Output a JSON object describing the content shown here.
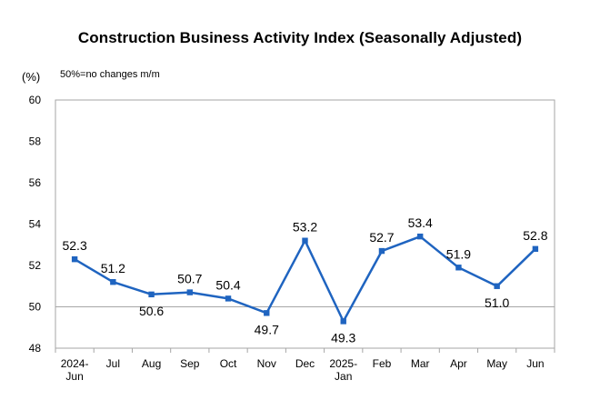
{
  "header": {
    "unit_label": "(%)",
    "note": "50%=no changes m/m"
  },
  "chart_data": {
    "type": "line",
    "title": "Construction Business Activity Index (Seasonally Adjusted)",
    "x_categories": [
      [
        "2024-",
        "Jun"
      ],
      [
        "Jul"
      ],
      [
        "Aug"
      ],
      [
        "Sep"
      ],
      [
        "Oct"
      ],
      [
        "Nov"
      ],
      [
        "Dec"
      ],
      [
        "2025-",
        "Jan"
      ],
      [
        "Feb"
      ],
      [
        "Mar"
      ],
      [
        "Apr"
      ],
      [
        "May"
      ],
      [
        "Jun"
      ]
    ],
    "series": [
      {
        "values": [
          52.3,
          51.2,
          50.6,
          50.7,
          50.4,
          49.7,
          53.2,
          49.3,
          52.7,
          53.4,
          51.9,
          51.0,
          52.8
        ]
      }
    ],
    "ylim": [
      48,
      60
    ],
    "yticks": [
      48,
      50,
      52,
      54,
      56,
      58,
      60
    ],
    "reference_line": 50,
    "grid": false,
    "legend": "none",
    "colors": {
      "line": "#1f64c0",
      "marker": "#1f64c0",
      "reference": "#a6a6a6",
      "frame": "#a6a6a6"
    }
  }
}
